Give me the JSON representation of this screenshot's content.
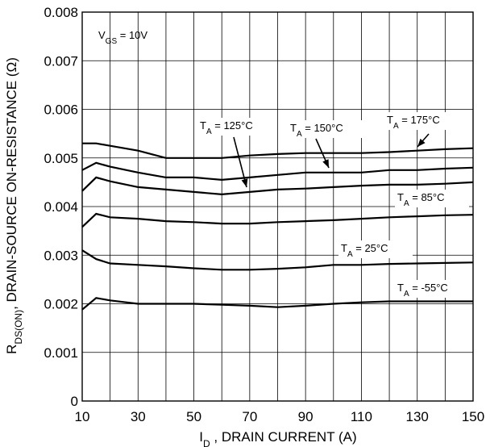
{
  "chart_data": {
    "type": "line",
    "xlabel_main": "I",
    "xlabel_sub": "D",
    "xlabel_rest": " , DRAIN CURRENT (A)",
    "ylabel_main": "R",
    "ylabel_sub": "DS(ON)",
    "ylabel_rest": ", DRAIN-SOURCE ON-RESISTANCE (Ω)",
    "xlim": [
      10,
      150
    ],
    "ylim": [
      0,
      0.008
    ],
    "x_ticks": [
      10,
      30,
      50,
      70,
      90,
      110,
      130,
      150
    ],
    "x_tick_labels": [
      "10",
      "30",
      "50",
      "70",
      "90",
      "110",
      "130",
      "150"
    ],
    "x_grid": [
      10,
      20,
      30,
      40,
      50,
      60,
      70,
      80,
      90,
      100,
      110,
      120,
      130,
      140,
      150
    ],
    "y_ticks": [
      0,
      0.001,
      0.002,
      0.003,
      0.004,
      0.005,
      0.006,
      0.007,
      0.008
    ],
    "y_tick_labels": [
      "0",
      "0.001",
      "0.002",
      "0.003",
      "0.004",
      "0.005",
      "0.006",
      "0.007",
      "0.008"
    ],
    "grid": true,
    "condition": {
      "main": "V",
      "sub": "GS",
      "rest": " = 10V"
    },
    "series": [
      {
        "name_main": "T",
        "name_sub": "A",
        "name_rest": " = 175°C",
        "x": [
          10,
          15,
          20,
          30,
          40,
          50,
          60,
          70,
          80,
          90,
          100,
          110,
          120,
          130,
          140,
          150
        ],
        "y": [
          0.0053,
          0.0053,
          0.00525,
          0.00515,
          0.005,
          0.005,
          0.005,
          0.00505,
          0.00508,
          0.0051,
          0.0051,
          0.0051,
          0.00512,
          0.00515,
          0.00518,
          0.0052
        ]
      },
      {
        "name_main": "T",
        "name_sub": "A",
        "name_rest": " = 150°C",
        "x": [
          10,
          15,
          20,
          30,
          40,
          50,
          60,
          70,
          80,
          90,
          100,
          110,
          120,
          130,
          140,
          150
        ],
        "y": [
          0.00475,
          0.0049,
          0.00482,
          0.0047,
          0.0046,
          0.0046,
          0.00455,
          0.0046,
          0.00465,
          0.0047,
          0.0047,
          0.0047,
          0.00475,
          0.00475,
          0.00478,
          0.0048
        ]
      },
      {
        "name_main": "T",
        "name_sub": "A",
        "name_rest": " = 125°C",
        "x": [
          10,
          15,
          20,
          30,
          40,
          50,
          60,
          70,
          80,
          90,
          100,
          110,
          120,
          130,
          140,
          150
        ],
        "y": [
          0.00432,
          0.0046,
          0.00452,
          0.0044,
          0.00435,
          0.0043,
          0.00425,
          0.0043,
          0.00435,
          0.00437,
          0.0044,
          0.00443,
          0.00445,
          0.00445,
          0.00447,
          0.0045
        ]
      },
      {
        "name_main": "T",
        "name_sub": "A",
        "name_rest": " = 85°C",
        "x": [
          10,
          15,
          20,
          30,
          40,
          50,
          60,
          70,
          80,
          90,
          100,
          110,
          120,
          130,
          140,
          150
        ],
        "y": [
          0.00358,
          0.00385,
          0.00378,
          0.00375,
          0.0037,
          0.00368,
          0.00365,
          0.00365,
          0.00368,
          0.0037,
          0.00372,
          0.00375,
          0.00378,
          0.0038,
          0.00382,
          0.00383
        ]
      },
      {
        "name_main": "T",
        "name_sub": "A",
        "name_rest": " = 25°C",
        "x": [
          10,
          15,
          20,
          30,
          40,
          50,
          60,
          70,
          80,
          90,
          100,
          110,
          120,
          130,
          140,
          150
        ],
        "y": [
          0.0031,
          0.00292,
          0.00283,
          0.0028,
          0.00277,
          0.00273,
          0.0027,
          0.0027,
          0.00272,
          0.00275,
          0.0028,
          0.0028,
          0.00282,
          0.00283,
          0.00284,
          0.00285
        ]
      },
      {
        "name_main": "T",
        "name_sub": "A",
        "name_rest": " = -55°C",
        "x": [
          10,
          15,
          20,
          30,
          40,
          50,
          60,
          70,
          80,
          90,
          100,
          110,
          120,
          130,
          140,
          150
        ],
        "y": [
          0.00188,
          0.00212,
          0.00207,
          0.002,
          0.002,
          0.002,
          0.00198,
          0.00196,
          0.00193,
          0.00196,
          0.002,
          0.00203,
          0.00205,
          0.00205,
          0.00205,
          0.00205
        ]
      }
    ]
  }
}
